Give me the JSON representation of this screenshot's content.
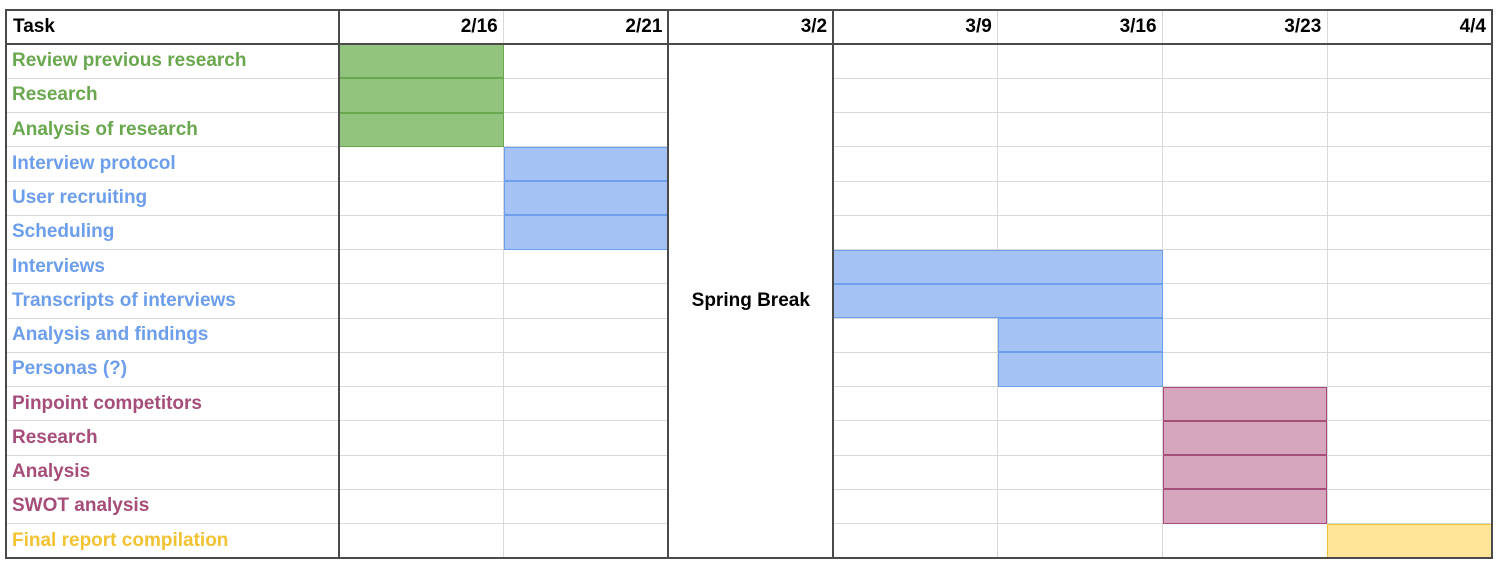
{
  "header": {
    "task_label": "Task"
  },
  "chart_data": {
    "type": "table",
    "columns": [
      "2/16",
      "2/21",
      "3/2",
      "3/9",
      "3/16",
      "3/23",
      "4/4"
    ],
    "merged_column": {
      "column": 2,
      "label": "Spring Break"
    },
    "groups": [
      {
        "color": "#6aa84f",
        "fill": "#93c47d"
      },
      {
        "color": "#6d9eeb",
        "fill": "#a4c2f4"
      },
      {
        "color": "#a64d79",
        "fill": "#d5a6bd"
      },
      {
        "color": "#f1c232",
        "fill": "#ffe599"
      }
    ],
    "tasks": [
      {
        "name": "Review previous research",
        "group": 0,
        "start": 0,
        "end": 0
      },
      {
        "name": "Research",
        "group": 0,
        "start": 0,
        "end": 0
      },
      {
        "name": "Analysis of research",
        "group": 0,
        "start": 0,
        "end": 0
      },
      {
        "name": "Interview protocol",
        "group": 1,
        "start": 1,
        "end": 1
      },
      {
        "name": "User recruiting",
        "group": 1,
        "start": 1,
        "end": 1
      },
      {
        "name": "Scheduling",
        "group": 1,
        "start": 1,
        "end": 1
      },
      {
        "name": "Interviews",
        "group": 1,
        "start": 3,
        "end": 4
      },
      {
        "name": "Transcripts of interviews",
        "group": 1,
        "start": 3,
        "end": 4
      },
      {
        "name": "Analysis and findings",
        "group": 1,
        "start": 4,
        "end": 4
      },
      {
        "name": "Personas (?)",
        "group": 1,
        "start": 4,
        "end": 4
      },
      {
        "name": "Pinpoint competitors",
        "group": 2,
        "start": 5,
        "end": 5
      },
      {
        "name": "Research",
        "group": 2,
        "start": 5,
        "end": 5
      },
      {
        "name": "Analysis",
        "group": 2,
        "start": 5,
        "end": 5
      },
      {
        "name": "SWOT analysis",
        "group": 2,
        "start": 5,
        "end": 5
      },
      {
        "name": "Final report compilation",
        "group": 3,
        "start": 6,
        "end": 6
      }
    ]
  }
}
